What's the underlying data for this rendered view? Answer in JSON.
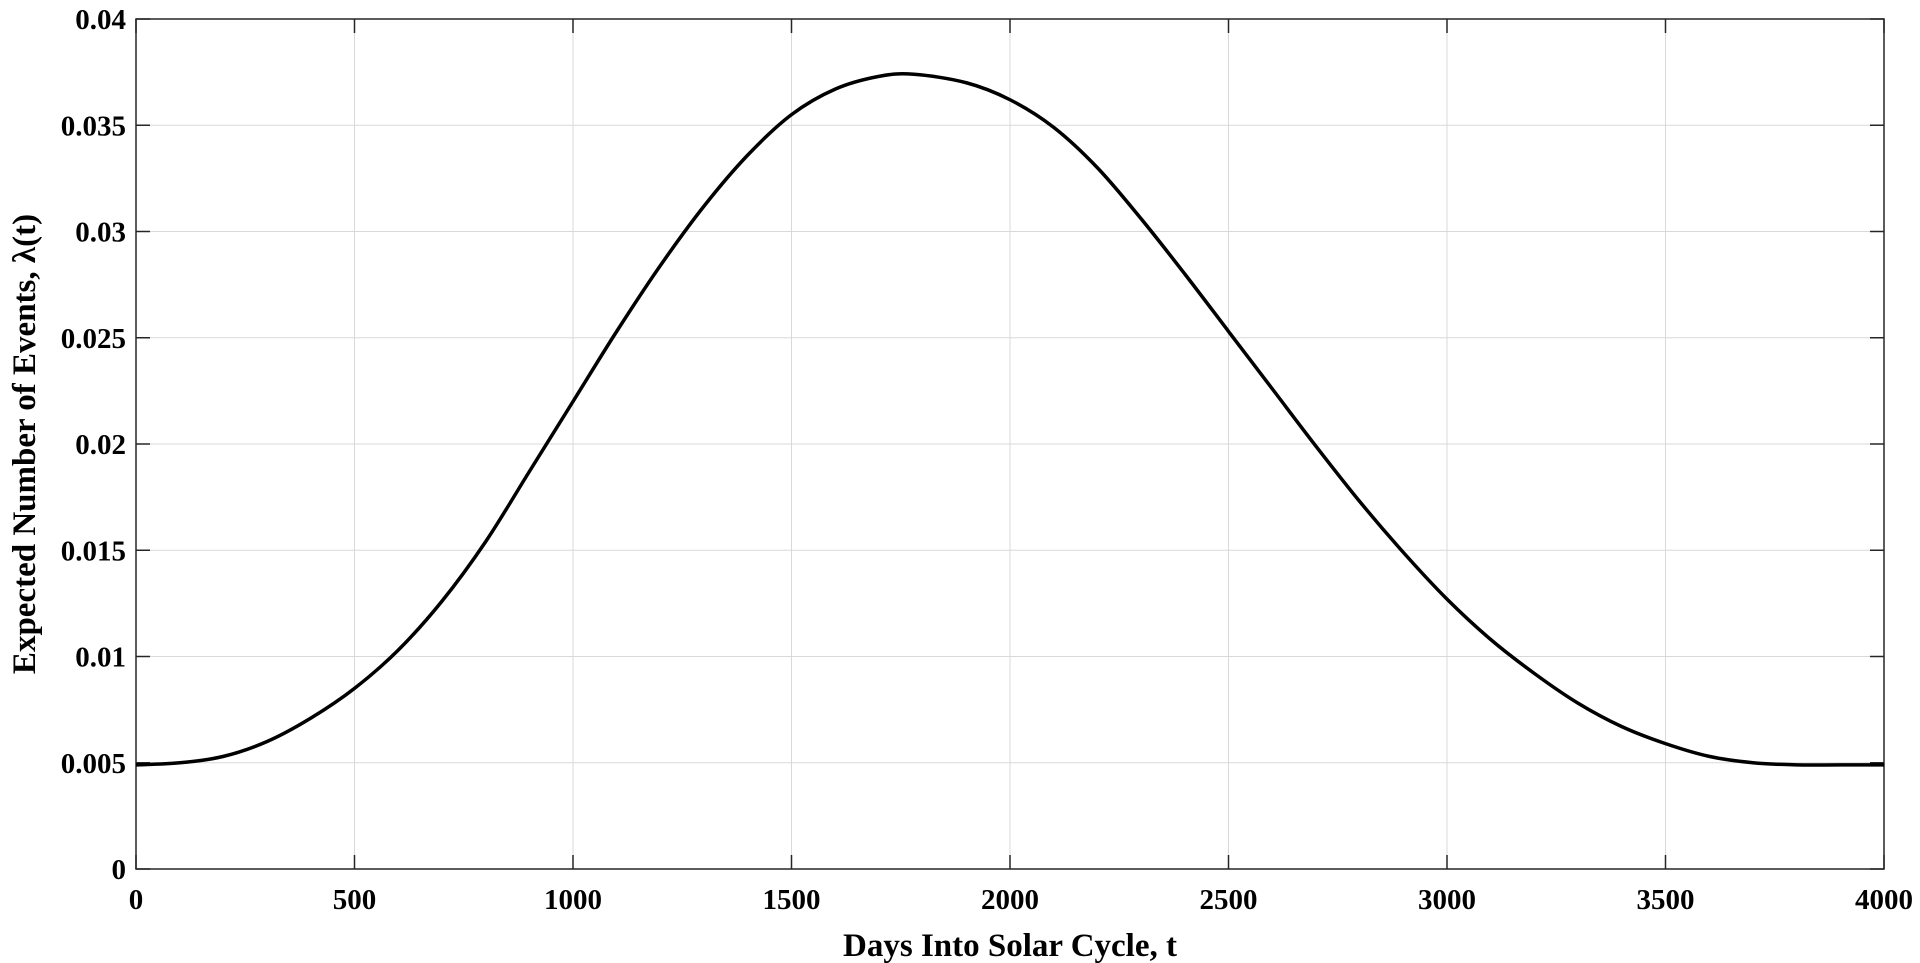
{
  "chart_data": {
    "type": "line",
    "title": "",
    "xlabel": "Days Into Solar Cycle, t",
    "ylabel": "Expected Number of Events, λ(t)",
    "xlim": [
      0,
      4000
    ],
    "ylim": [
      0,
      0.04
    ],
    "xticks": [
      0,
      500,
      1000,
      1500,
      2000,
      2500,
      3000,
      3500,
      4000
    ],
    "xtick_labels": [
      "0",
      "500",
      "1000",
      "1500",
      "2000",
      "2500",
      "3000",
      "3500",
      "4000"
    ],
    "yticks": [
      0,
      0.005,
      0.01,
      0.015,
      0.02,
      0.025,
      0.03,
      0.035,
      0.04
    ],
    "ytick_labels": [
      "0",
      "0.005",
      "0.01",
      "0.015",
      "0.02",
      "0.025",
      "0.03",
      "0.035",
      "0.04"
    ],
    "grid": true,
    "line_color": "#000000",
    "series": [
      {
        "x": [
          0,
          100,
          200,
          300,
          400,
          500,
          600,
          700,
          800,
          900,
          1000,
          1100,
          1200,
          1300,
          1400,
          1500,
          1600,
          1700,
          1780,
          1900,
          2000,
          2100,
          2200,
          2300,
          2400,
          2500,
          2600,
          2700,
          2800,
          2900,
          3000,
          3100,
          3200,
          3300,
          3400,
          3500,
          3600,
          3700,
          3800,
          3900,
          4000
        ],
        "y": [
          0.0049,
          0.005,
          0.0053,
          0.006,
          0.0071,
          0.0085,
          0.0103,
          0.0126,
          0.0154,
          0.0187,
          0.022,
          0.0253,
          0.0284,
          0.0312,
          0.0336,
          0.0355,
          0.0367,
          0.0373,
          0.0374,
          0.037,
          0.0362,
          0.0349,
          0.033,
          0.0306,
          0.028,
          0.0253,
          0.0226,
          0.0199,
          0.0173,
          0.0149,
          0.0127,
          0.0108,
          0.0092,
          0.0078,
          0.0067,
          0.0059,
          0.0053,
          0.005,
          0.0049,
          0.0049,
          0.0049
        ]
      }
    ]
  }
}
